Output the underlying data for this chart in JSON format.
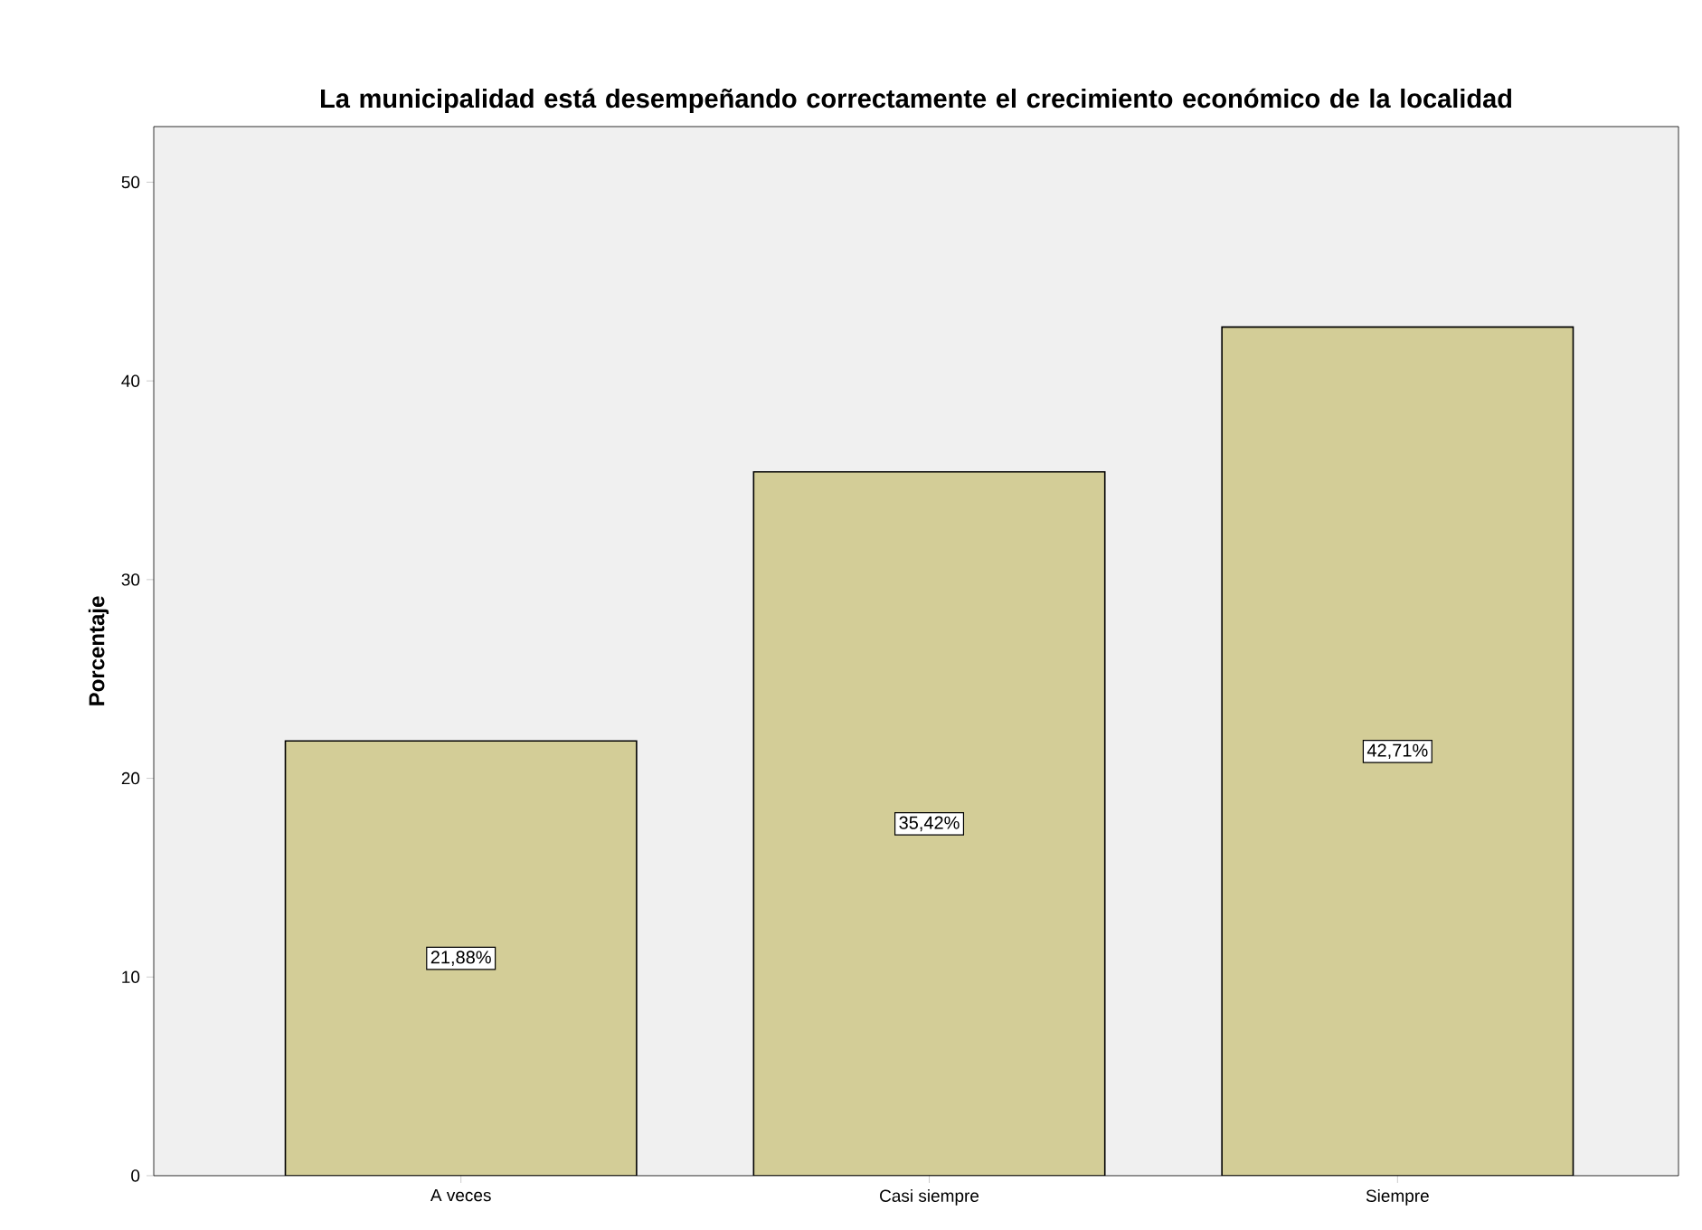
{
  "chart_data": {
    "type": "bar",
    "title": "La municipalidad está desempeñando correctamente el crecimiento económico de la localidad",
    "ylabel": "Porcentaje",
    "categories": [
      "A veces",
      "Casi siempre",
      "Siempre"
    ],
    "values": [
      21.88,
      35.42,
      42.71
    ],
    "value_labels": [
      "21,88%",
      "35,42%",
      "42,71%"
    ],
    "color": "#d3cd97",
    "ylim": [
      0,
      52.8
    ],
    "yticks": [
      0,
      10,
      20,
      30,
      40,
      50
    ],
    "grid": false
  }
}
